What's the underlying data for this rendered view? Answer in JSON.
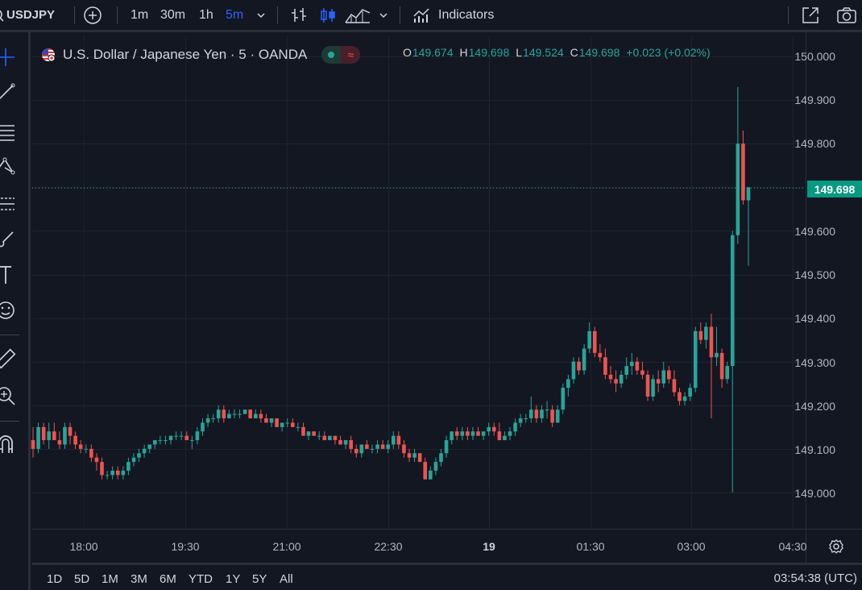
{
  "toolbar": {
    "symbol": "USDJPY",
    "intervals": [
      "1m",
      "30m",
      "1h",
      "5m"
    ],
    "active_interval": "5m",
    "indicators_label": "Indicators"
  },
  "legend": {
    "title": "U.S. Dollar / Japanese Yen · 5 · OANDA",
    "open_key": "O",
    "open": "149.674",
    "high_key": "H",
    "high": "149.698",
    "low_key": "L",
    "low": "149.524",
    "close_key": "C",
    "close": "149.698",
    "change": "+0.023 (+0.02%)"
  },
  "colors": {
    "up": "#26a69a",
    "down": "#ef5350",
    "bg": "#131722",
    "grid": "#1f2330",
    "accent": "#2962ff"
  },
  "price_axis": {
    "ticks": [
      "150.000",
      "149.900",
      "149.800",
      "149.600",
      "149.500",
      "149.400",
      "149.300",
      "149.200",
      "149.100",
      "149.000"
    ],
    "last_price": "149.698"
  },
  "time_axis": {
    "ticks": [
      "18:00",
      "19:30",
      "21:00",
      "22:30",
      "19",
      "01:30",
      "03:00",
      "04:30"
    ]
  },
  "ranges": [
    "1D",
    "5D",
    "1M",
    "3M",
    "6M",
    "YTD",
    "1Y",
    "5Y",
    "All"
  ],
  "clock": "03:54:38 (UTC)",
  "chart_data": {
    "type": "candlestick",
    "ylim": [
      148.9,
      150.05
    ],
    "candles": [
      [
        149.12,
        149.15,
        149.08,
        149.1
      ],
      [
        149.1,
        149.16,
        149.09,
        149.15
      ],
      [
        149.15,
        149.16,
        149.11,
        149.12
      ],
      [
        149.12,
        149.16,
        149.1,
        149.14
      ],
      [
        149.14,
        149.16,
        149.12,
        149.12
      ],
      [
        149.12,
        149.14,
        149.1,
        149.11
      ],
      [
        149.11,
        149.16,
        149.1,
        149.15
      ],
      [
        149.15,
        149.16,
        149.11,
        149.13
      ],
      [
        149.13,
        149.14,
        149.1,
        149.11
      ],
      [
        149.11,
        149.12,
        149.09,
        149.1
      ],
      [
        149.1,
        149.11,
        149.09,
        149.1
      ],
      [
        149.1,
        149.11,
        149.07,
        149.08
      ],
      [
        149.08,
        149.09,
        149.05,
        149.07
      ],
      [
        149.07,
        149.08,
        149.03,
        149.04
      ],
      [
        149.04,
        149.05,
        149.03,
        149.04
      ],
      [
        149.04,
        149.06,
        149.03,
        149.05
      ],
      [
        149.05,
        149.06,
        149.03,
        149.04
      ],
      [
        149.04,
        149.06,
        149.03,
        149.05
      ],
      [
        149.05,
        149.08,
        149.04,
        149.07
      ],
      [
        149.07,
        149.09,
        149.06,
        149.08
      ],
      [
        149.08,
        149.1,
        149.07,
        149.09
      ],
      [
        149.09,
        149.11,
        149.08,
        149.1
      ],
      [
        149.1,
        149.11,
        149.09,
        149.11
      ],
      [
        149.11,
        149.12,
        149.1,
        149.12
      ],
      [
        149.12,
        149.13,
        149.11,
        149.12
      ],
      [
        149.12,
        149.13,
        149.11,
        149.12
      ],
      [
        149.12,
        149.13,
        149.11,
        149.13
      ],
      [
        149.13,
        149.14,
        149.12,
        149.13
      ],
      [
        149.13,
        149.14,
        149.12,
        149.13
      ],
      [
        149.13,
        149.14,
        149.12,
        149.12
      ],
      [
        149.12,
        149.13,
        149.1,
        149.12
      ],
      [
        149.12,
        149.15,
        149.11,
        149.14
      ],
      [
        149.14,
        149.17,
        149.13,
        149.16
      ],
      [
        149.16,
        149.18,
        149.15,
        149.17
      ],
      [
        149.17,
        149.18,
        149.16,
        149.17
      ],
      [
        149.17,
        149.2,
        149.16,
        149.19
      ],
      [
        149.19,
        149.2,
        149.16,
        149.17
      ],
      [
        149.17,
        149.19,
        149.17,
        149.18
      ],
      [
        149.18,
        149.19,
        149.17,
        149.18
      ],
      [
        149.18,
        149.19,
        149.17,
        149.18
      ],
      [
        149.18,
        149.19,
        149.18,
        149.19
      ],
      [
        149.19,
        149.19,
        149.17,
        149.17
      ],
      [
        149.17,
        149.19,
        149.17,
        149.18
      ],
      [
        149.18,
        149.19,
        149.16,
        149.17
      ],
      [
        149.17,
        149.18,
        149.16,
        149.16
      ],
      [
        149.16,
        149.17,
        149.15,
        149.17
      ],
      [
        149.17,
        149.17,
        149.15,
        149.15
      ],
      [
        149.15,
        149.16,
        149.14,
        149.16
      ],
      [
        149.16,
        149.17,
        149.15,
        149.16
      ],
      [
        149.16,
        149.17,
        149.15,
        149.15
      ],
      [
        149.15,
        149.16,
        149.14,
        149.15
      ],
      [
        149.15,
        149.16,
        149.13,
        149.13
      ],
      [
        149.13,
        149.14,
        149.12,
        149.14
      ],
      [
        149.14,
        149.14,
        149.13,
        149.13
      ],
      [
        149.13,
        149.14,
        149.12,
        149.13
      ],
      [
        149.13,
        149.14,
        149.12,
        149.12
      ],
      [
        149.12,
        149.13,
        149.12,
        149.13
      ],
      [
        149.13,
        149.13,
        149.11,
        149.12
      ],
      [
        149.12,
        149.13,
        149.11,
        149.11
      ],
      [
        149.11,
        149.12,
        149.1,
        149.12
      ],
      [
        149.12,
        149.13,
        149.09,
        149.1
      ],
      [
        149.1,
        149.11,
        149.08,
        149.09
      ],
      [
        149.09,
        149.11,
        149.08,
        149.11
      ],
      [
        149.11,
        149.12,
        149.1,
        149.1
      ],
      [
        149.1,
        149.11,
        149.09,
        149.1
      ],
      [
        149.1,
        149.12,
        149.09,
        149.11
      ],
      [
        149.11,
        149.12,
        149.1,
        149.1
      ],
      [
        149.1,
        149.12,
        149.09,
        149.11
      ],
      [
        149.11,
        149.14,
        149.1,
        149.13
      ],
      [
        149.13,
        149.14,
        149.1,
        149.11
      ],
      [
        149.11,
        149.12,
        149.08,
        149.09
      ],
      [
        149.09,
        149.1,
        149.07,
        149.08
      ],
      [
        149.08,
        149.1,
        149.07,
        149.09
      ],
      [
        149.09,
        149.09,
        149.07,
        149.07
      ],
      [
        149.07,
        149.08,
        149.03,
        149.03
      ],
      [
        149.03,
        149.06,
        149.03,
        149.05
      ],
      [
        149.05,
        149.08,
        149.04,
        149.07
      ],
      [
        149.07,
        149.1,
        149.06,
        149.09
      ],
      [
        149.09,
        149.13,
        149.08,
        149.12
      ],
      [
        149.12,
        149.14,
        149.11,
        149.14
      ],
      [
        149.14,
        149.15,
        149.12,
        149.13
      ],
      [
        149.13,
        149.15,
        149.12,
        149.14
      ],
      [
        149.14,
        149.15,
        149.12,
        149.13
      ],
      [
        149.13,
        149.15,
        149.12,
        149.14
      ],
      [
        149.14,
        149.15,
        149.13,
        149.13
      ],
      [
        149.13,
        149.14,
        149.12,
        149.14
      ],
      [
        149.14,
        149.16,
        149.13,
        149.15
      ],
      [
        149.15,
        149.16,
        149.13,
        149.14
      ],
      [
        149.14,
        149.16,
        149.12,
        149.12
      ],
      [
        149.12,
        149.14,
        149.12,
        149.13
      ],
      [
        149.13,
        149.15,
        149.12,
        149.14
      ],
      [
        149.14,
        149.17,
        149.13,
        149.16
      ],
      [
        149.16,
        149.18,
        149.15,
        149.17
      ],
      [
        149.17,
        149.18,
        149.16,
        149.17
      ],
      [
        149.17,
        149.22,
        149.16,
        149.19
      ],
      [
        149.19,
        149.2,
        149.16,
        149.17
      ],
      [
        149.17,
        149.2,
        149.16,
        149.19
      ],
      [
        149.19,
        149.21,
        149.17,
        149.19
      ],
      [
        149.19,
        149.2,
        149.15,
        149.16
      ],
      [
        149.16,
        149.2,
        149.16,
        149.19
      ],
      [
        149.19,
        149.25,
        149.18,
        149.24
      ],
      [
        149.24,
        149.27,
        149.22,
        149.26
      ],
      [
        149.26,
        149.31,
        149.25,
        149.3
      ],
      [
        149.3,
        149.31,
        149.27,
        149.28
      ],
      [
        149.28,
        149.34,
        149.27,
        149.33
      ],
      [
        149.33,
        149.39,
        149.32,
        149.37
      ],
      [
        149.37,
        149.38,
        149.31,
        149.32
      ],
      [
        149.32,
        149.34,
        149.3,
        149.31
      ],
      [
        149.31,
        149.33,
        149.26,
        149.27
      ],
      [
        149.27,
        149.29,
        149.25,
        149.26
      ],
      [
        149.26,
        149.28,
        149.23,
        149.25
      ],
      [
        149.25,
        149.28,
        149.24,
        149.27
      ],
      [
        149.27,
        149.31,
        149.26,
        149.29
      ],
      [
        149.29,
        149.32,
        149.27,
        149.3
      ],
      [
        149.3,
        149.31,
        149.27,
        149.28
      ],
      [
        149.28,
        149.3,
        149.26,
        149.27
      ],
      [
        149.27,
        149.28,
        149.21,
        149.22
      ],
      [
        149.22,
        149.27,
        149.21,
        149.26
      ],
      [
        149.26,
        149.28,
        149.23,
        149.25
      ],
      [
        149.25,
        149.3,
        149.24,
        149.28
      ],
      [
        149.28,
        149.29,
        149.25,
        149.26
      ],
      [
        149.26,
        149.28,
        149.22,
        149.23
      ],
      [
        149.23,
        149.24,
        149.2,
        149.21
      ],
      [
        149.21,
        149.23,
        149.2,
        149.22
      ],
      [
        149.22,
        149.25,
        149.21,
        149.24
      ],
      [
        149.24,
        149.38,
        149.23,
        149.37
      ],
      [
        149.37,
        149.39,
        149.34,
        149.35
      ],
      [
        149.35,
        149.39,
        149.33,
        149.38
      ],
      [
        149.38,
        149.41,
        149.17,
        149.31
      ],
      [
        149.31,
        149.38,
        149.29,
        149.32
      ],
      [
        149.32,
        149.33,
        149.24,
        149.26
      ],
      [
        149.26,
        149.3,
        149.25,
        149.29
      ],
      [
        149.29,
        149.6,
        149.0,
        149.59
      ],
      [
        149.59,
        149.93,
        149.57,
        149.8
      ],
      [
        149.8,
        149.83,
        149.66,
        149.67
      ],
      [
        149.67,
        149.7,
        149.52,
        149.7
      ]
    ]
  }
}
